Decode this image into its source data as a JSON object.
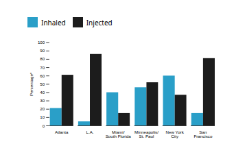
{
  "chart_data": {
    "type": "bar",
    "categories": [
      "Atlanta",
      "L.A.",
      "Miami/\nSouth Florida",
      "Minneapolis/\nSt. Paul",
      "New York\nCity",
      "San\nFrancisco"
    ],
    "series": [
      {
        "name": "Inhaled",
        "color": "#2a9fc8",
        "values": [
          21,
          5,
          40,
          46,
          60,
          15
        ]
      },
      {
        "name": "Injected",
        "color": "#1c1c1c",
        "values": [
          61,
          86,
          15,
          52,
          37,
          81
        ]
      }
    ],
    "ylabel": "Percentage*",
    "ylim": [
      0,
      100
    ],
    "yticks": [
      0,
      10,
      20,
      30,
      40,
      50,
      60,
      70,
      80,
      90,
      100
    ],
    "grid": false,
    "legend": "top"
  }
}
